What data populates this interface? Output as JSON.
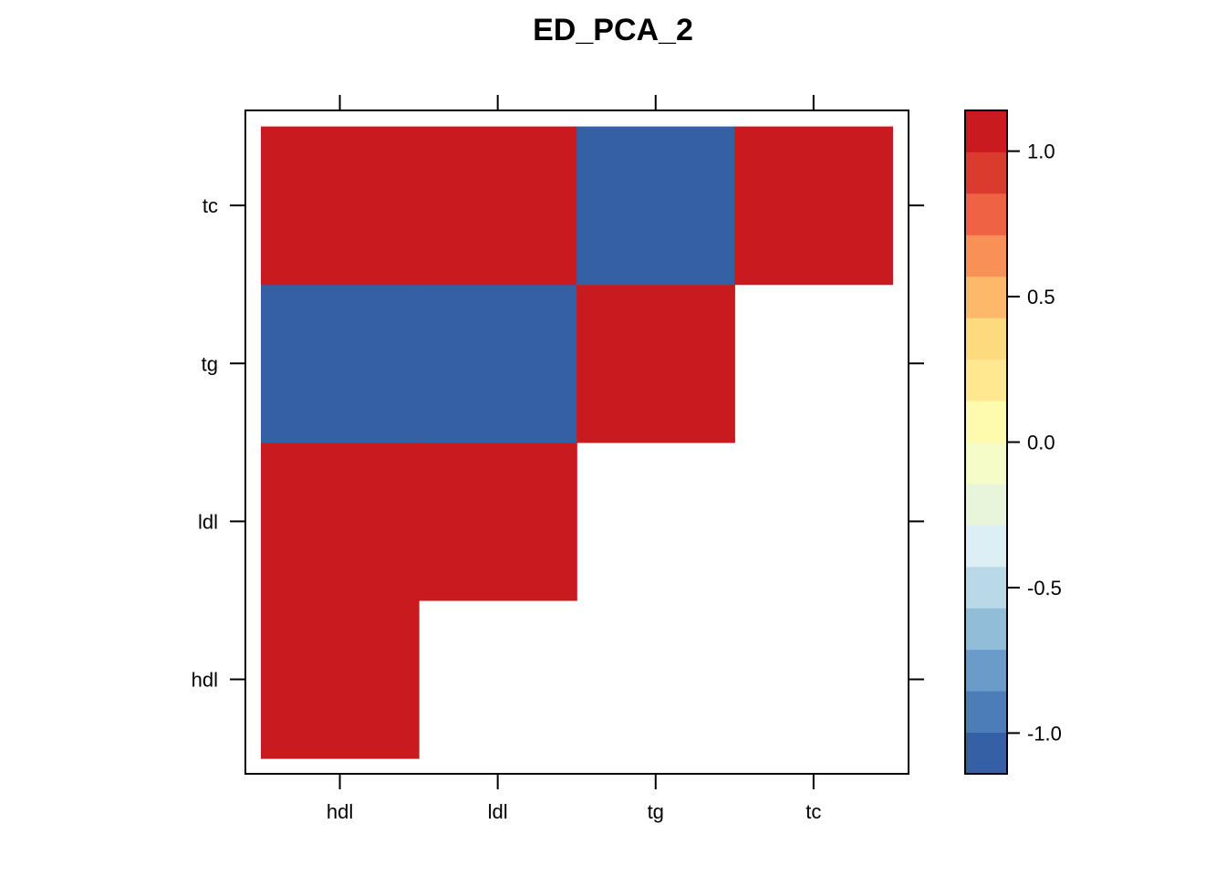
{
  "chart_data": {
    "type": "heatmap",
    "title": "ED_PCA_2",
    "xlabel": "",
    "ylabel": "",
    "x_categories": [
      "hdl",
      "ldl",
      "tg",
      "tc"
    ],
    "y_categories": [
      "hdl",
      "ldl",
      "tg",
      "tc"
    ],
    "cells": [
      {
        "x": "hdl",
        "y": "hdl",
        "value": 1.0
      },
      {
        "x": "hdl",
        "y": "ldl",
        "value": 1.0
      },
      {
        "x": "ldl",
        "y": "ldl",
        "value": 1.0
      },
      {
        "x": "hdl",
        "y": "tg",
        "value": -1.0
      },
      {
        "x": "ldl",
        "y": "tg",
        "value": -1.0
      },
      {
        "x": "tg",
        "y": "tg",
        "value": 1.0
      },
      {
        "x": "hdl",
        "y": "tc",
        "value": 1.0
      },
      {
        "x": "ldl",
        "y": "tc",
        "value": 1.0
      },
      {
        "x": "tg",
        "y": "tc",
        "value": -1.0
      },
      {
        "x": "tc",
        "y": "tc",
        "value": 1.0
      }
    ],
    "colorbar": {
      "range": [
        -1.14,
        1.14
      ],
      "ticks": [
        1.0,
        0.5,
        0.0,
        -0.5,
        -1.0
      ],
      "tick_labels": [
        "1.0",
        "0.5",
        "0.0",
        "-0.5",
        "-1.0"
      ],
      "colors": [
        "#3660A5",
        "#4C7DB9",
        "#6B9BC8",
        "#92BDD9",
        "#B9D8E8",
        "#DBEFF5",
        "#E9F5DB",
        "#F6FCC8",
        "#FEFBAE",
        "#FFE88F",
        "#FEDA7E",
        "#FDB86A",
        "#F99156",
        "#EF6244",
        "#DA3B2E",
        "#C91B1F"
      ]
    },
    "grid": false,
    "legend": "colorbar right"
  }
}
